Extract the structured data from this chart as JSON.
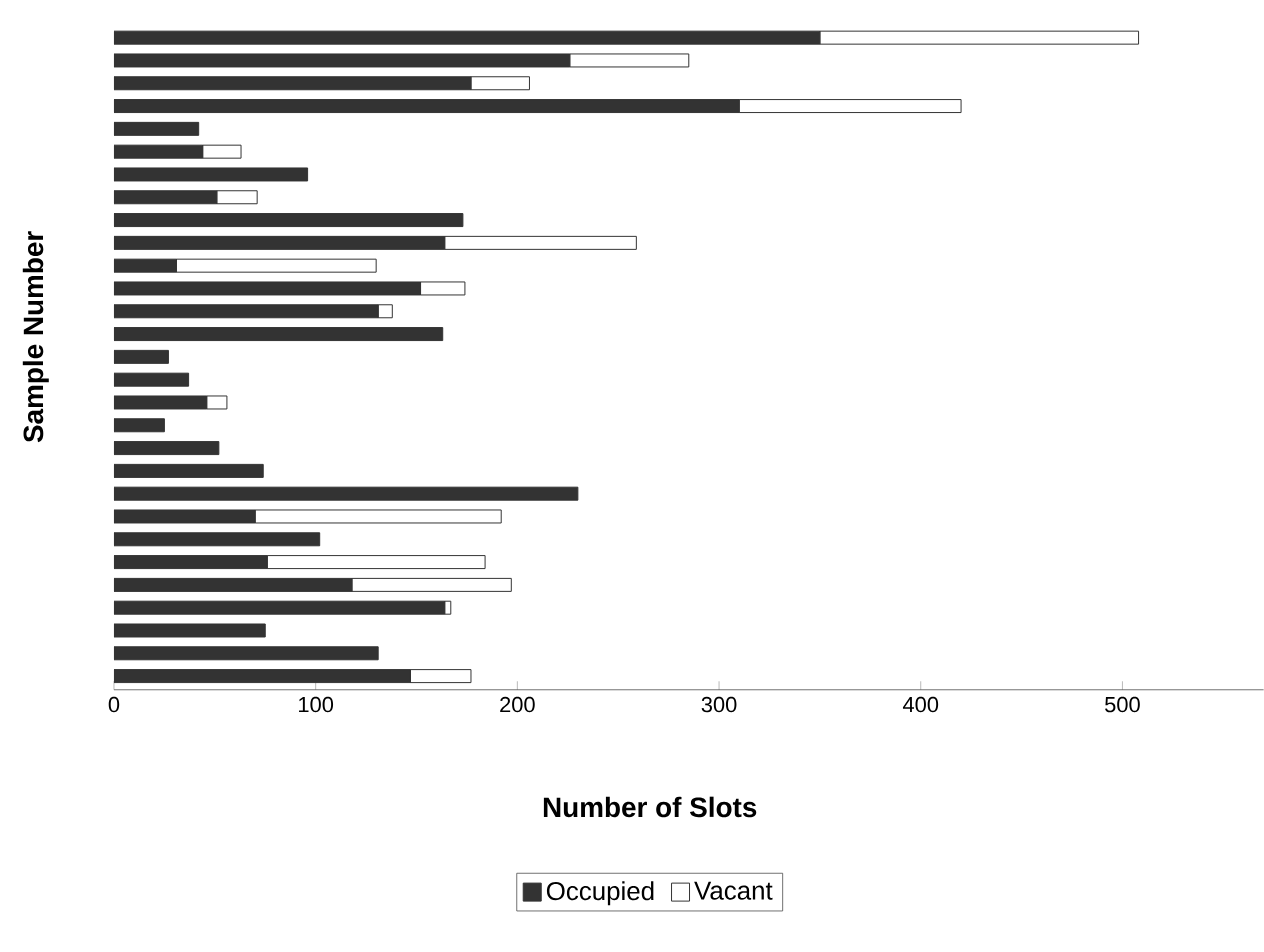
{
  "chart_data": {
    "type": "bar",
    "orientation": "horizontal",
    "stacked": true,
    "xlabel": "Number of Slots",
    "ylabel": "Sample Number",
    "categories": [
      null,
      null,
      null,
      null,
      null,
      null,
      null,
      null,
      null,
      null,
      null,
      null,
      null,
      null,
      null,
      null,
      null,
      null,
      null,
      null,
      null,
      null,
      null,
      null,
      null,
      null,
      null,
      null,
      null
    ],
    "series": [
      {
        "name": "Occupied",
        "color": "#333333",
        "values": [
          350,
          226,
          177,
          310,
          42,
          44,
          96,
          51,
          173,
          164,
          31,
          152,
          131,
          163,
          27,
          37,
          46,
          25,
          52,
          74,
          230,
          70,
          102,
          76,
          118,
          164,
          75,
          131,
          147
        ]
      },
      {
        "name": "Vacant",
        "color": "#ffffff",
        "values": [
          158,
          59,
          29,
          110,
          0,
          19,
          0,
          20,
          0,
          95,
          99,
          22,
          7,
          0,
          0,
          0,
          10,
          0,
          0,
          0,
          0,
          122,
          0,
          108,
          79,
          3,
          0,
          0,
          30
        ]
      }
    ],
    "xlim": [
      0,
      570
    ],
    "xticks": [
      0,
      100,
      200,
      300,
      400,
      500
    ],
    "legend": "bottom"
  }
}
